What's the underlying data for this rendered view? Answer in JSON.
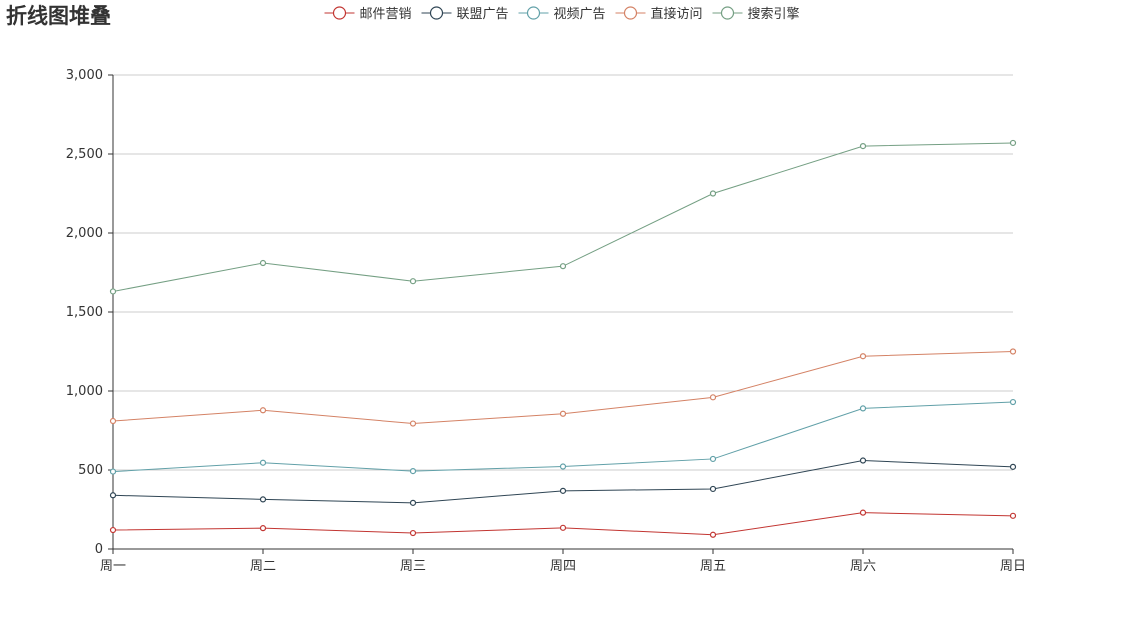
{
  "chart_data": {
    "type": "line",
    "title": "折线图堆叠",
    "stacked": true,
    "categories": [
      "周一",
      "周二",
      "周三",
      "周四",
      "周五",
      "周六",
      "周日"
    ],
    "xlabel": "",
    "ylabel": "",
    "ylim": [
      0,
      3000
    ],
    "yticks": [
      0,
      500,
      1000,
      1500,
      2000,
      2500,
      3000
    ],
    "ytick_labels": [
      "0",
      "500",
      "1,000",
      "1,500",
      "2,000",
      "2,500",
      "3,000"
    ],
    "grid": true,
    "legend_position": "top-center",
    "series": [
      {
        "name": "邮件营销",
        "color": "#c23531",
        "values": [
          120,
          132,
          101,
          134,
          90,
          230,
          210
        ]
      },
      {
        "name": "联盟广告",
        "color": "#2f4554",
        "values": [
          220,
          182,
          191,
          234,
          290,
          330,
          310
        ]
      },
      {
        "name": "视频广告",
        "color": "#61a0a8",
        "values": [
          150,
          232,
          201,
          154,
          190,
          330,
          410
        ]
      },
      {
        "name": "直接访问",
        "color": "#d48265",
        "values": [
          320,
          332,
          301,
          334,
          390,
          330,
          320
        ]
      },
      {
        "name": "搜索引擎",
        "color": "#749f83",
        "values": [
          820,
          932,
          901,
          934,
          1290,
          1330,
          1320
        ]
      }
    ]
  }
}
